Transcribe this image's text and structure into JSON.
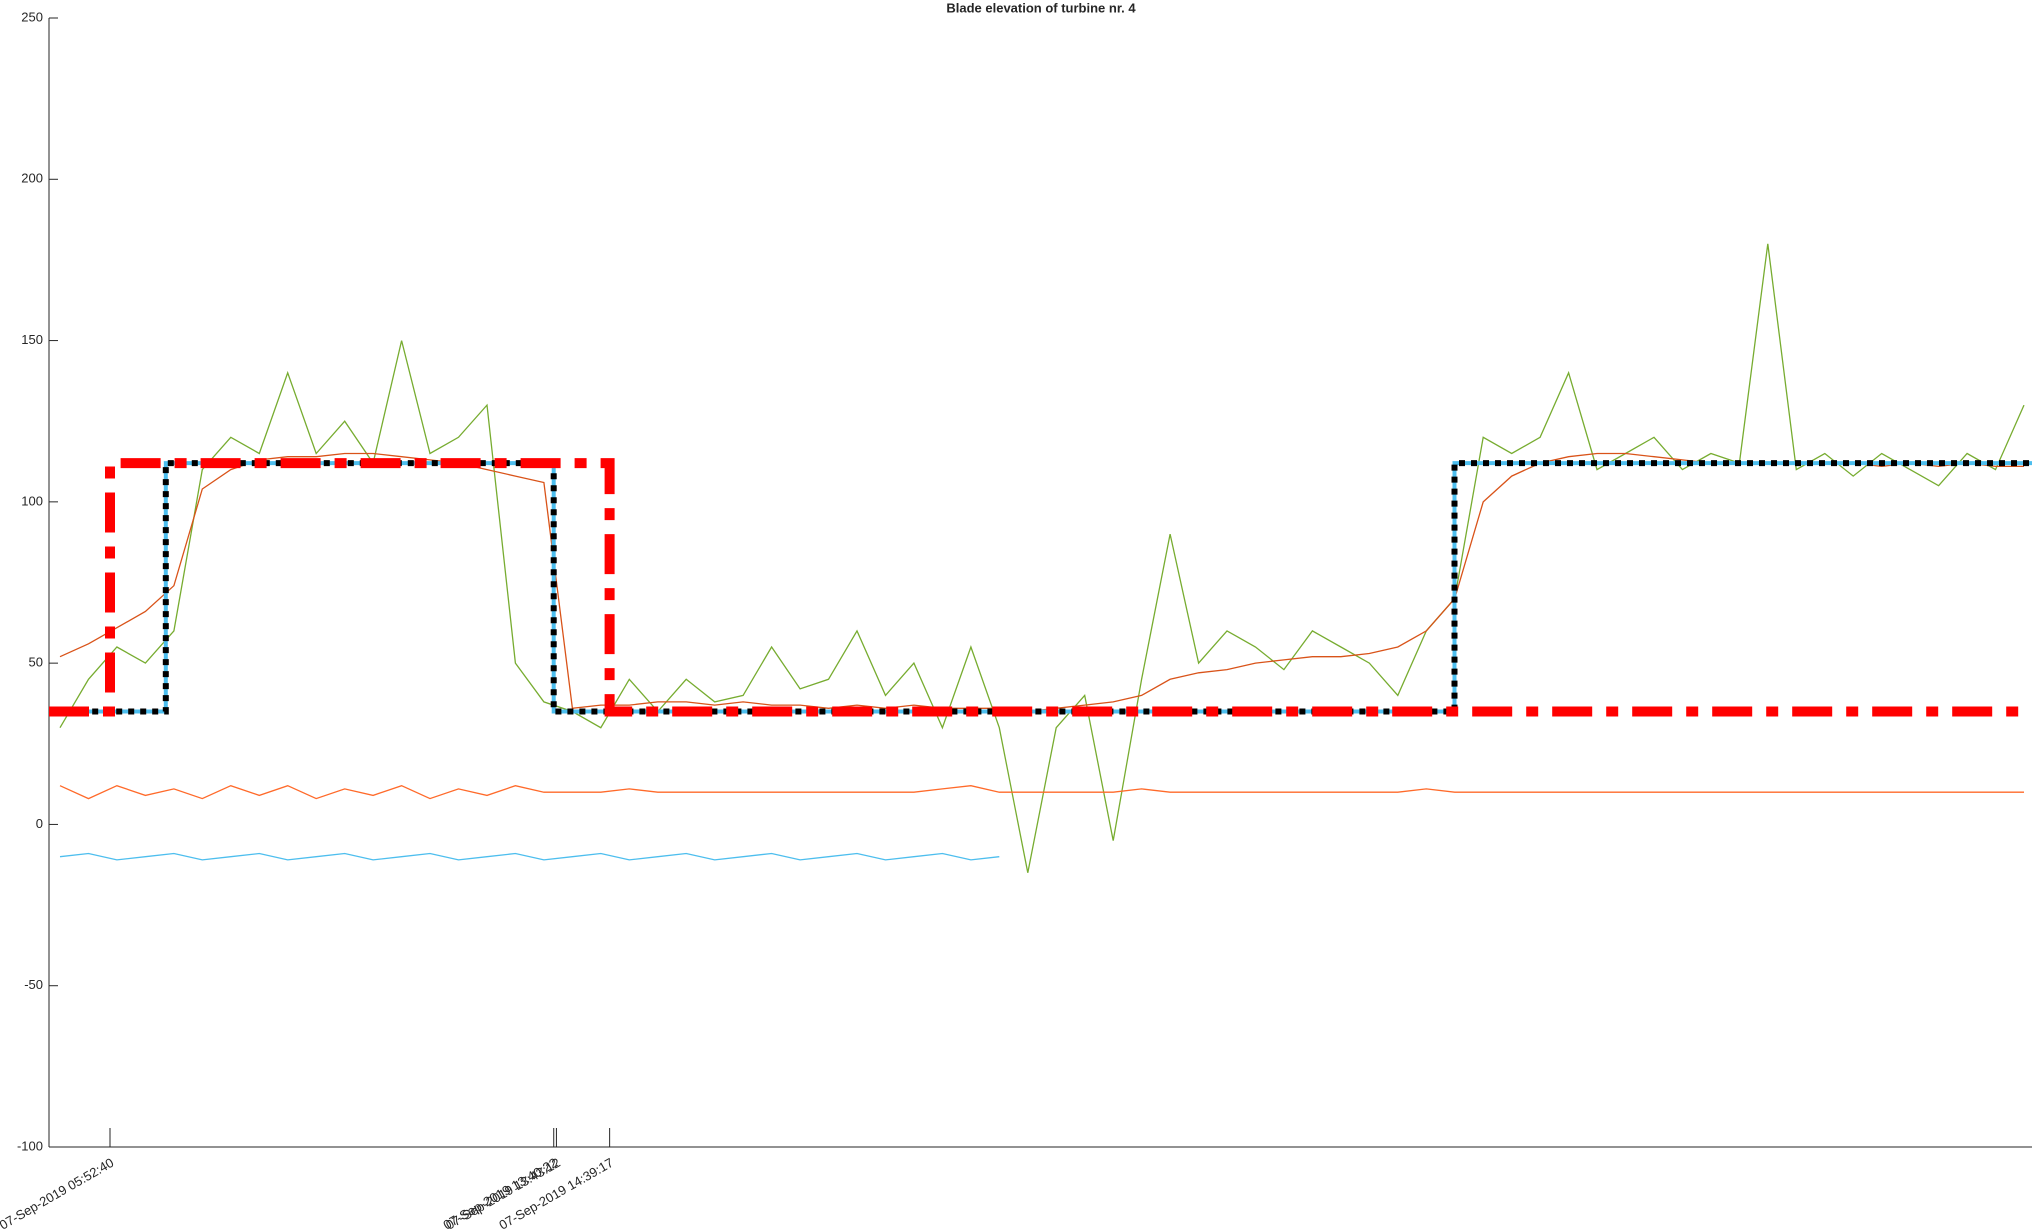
{
  "chart_data": {
    "type": "line",
    "title": "Blade elevation of turbine nr. 4",
    "xlim": [
      "07-Sep-2019 04:48:23",
      "08-Sep-2019 15:38:26"
    ],
    "xticks": [
      "07-Sep-2019 05:52:40",
      "07-Sep-2019 13:40:22",
      "07-Sep-2019 13:43:12",
      "07-Sep-2019 14:39:17"
    ],
    "ylim": [
      -100,
      250
    ],
    "yticks": [
      -100,
      -50,
      0,
      50,
      100,
      150,
      200,
      250
    ],
    "grid": false,
    "x": [
      "07-Sep-2019 05:00:00",
      "07-Sep-2019 05:30:00",
      "07-Sep-2019 06:00:00",
      "07-Sep-2019 06:30:00",
      "07-Sep-2019 07:00:00",
      "07-Sep-2019 07:30:00",
      "07-Sep-2019 08:00:00",
      "07-Sep-2019 08:30:00",
      "07-Sep-2019 09:00:00",
      "07-Sep-2019 09:30:00",
      "07-Sep-2019 10:00:00",
      "07-Sep-2019 10:30:00",
      "07-Sep-2019 11:00:00",
      "07-Sep-2019 11:30:00",
      "07-Sep-2019 12:00:00",
      "07-Sep-2019 12:30:00",
      "07-Sep-2019 13:00:00",
      "07-Sep-2019 13:30:00",
      "07-Sep-2019 14:00:00",
      "07-Sep-2019 14:30:00",
      "07-Sep-2019 15:00:00",
      "07-Sep-2019 15:30:00",
      "07-Sep-2019 16:00:00",
      "07-Sep-2019 16:30:00",
      "07-Sep-2019 17:00:00",
      "07-Sep-2019 17:30:00",
      "07-Sep-2019 18:00:00",
      "07-Sep-2019 18:30:00",
      "07-Sep-2019 19:00:00",
      "07-Sep-2019 19:30:00",
      "07-Sep-2019 20:00:00",
      "07-Sep-2019 20:30:00",
      "07-Sep-2019 21:00:00",
      "07-Sep-2019 21:30:00",
      "07-Sep-2019 22:00:00",
      "07-Sep-2019 22:30:00",
      "07-Sep-2019 23:00:00",
      "07-Sep-2019 23:30:00",
      "08-Sep-2019 00:00:00",
      "08-Sep-2019 00:30:00",
      "08-Sep-2019 01:00:00",
      "08-Sep-2019 01:30:00",
      "08-Sep-2019 02:00:00",
      "08-Sep-2019 02:30:00",
      "08-Sep-2019 03:00:00",
      "08-Sep-2019 03:30:00",
      "08-Sep-2019 04:00:00",
      "08-Sep-2019 04:30:00",
      "08-Sep-2019 05:00:00",
      "08-Sep-2019 05:30:00",
      "08-Sep-2019 06:00:00",
      "08-Sep-2019 06:30:00",
      "08-Sep-2019 07:00:00",
      "08-Sep-2019 07:30:00",
      "08-Sep-2019 08:00:00",
      "08-Sep-2019 08:30:00",
      "08-Sep-2019 09:00:00",
      "08-Sep-2019 09:30:00",
      "08-Sep-2019 10:00:00",
      "08-Sep-2019 10:30:00",
      "08-Sep-2019 11:00:00",
      "08-Sep-2019 11:30:00",
      "08-Sep-2019 12:00:00",
      "08-Sep-2019 12:30:00",
      "08-Sep-2019 13:00:00",
      "08-Sep-2019 13:30:00",
      "08-Sep-2019 14:00:00",
      "08-Sep-2019 14:30:00",
      "08-Sep-2019 15:00:00",
      "08-Sep-2019 15:30:00"
    ],
    "series": [
      {
        "color": "#77ac30",
        "style": "solid",
        "values": [
          30,
          45,
          55,
          50,
          60,
          110,
          120,
          115,
          140,
          115,
          125,
          112,
          150,
          115,
          120,
          130,
          50,
          38,
          35,
          30,
          45,
          35,
          45,
          38,
          40,
          55,
          42,
          45,
          60,
          40,
          50,
          30,
          55,
          30,
          -15,
          30,
          40,
          -5,
          45,
          90,
          50,
          60,
          55,
          48,
          60,
          55,
          50,
          40,
          60,
          70,
          120,
          115,
          120,
          140,
          110,
          115,
          120,
          110,
          115,
          112,
          180,
          110,
          115,
          108,
          115,
          110,
          105,
          115,
          110,
          130
        ]
      },
      {
        "color": "#d95319",
        "style": "solid",
        "values": [
          52,
          56,
          61,
          66,
          74,
          104,
          110,
          113,
          114,
          114,
          115,
          115,
          114,
          113,
          112,
          110,
          108,
          106,
          36,
          37,
          37,
          38,
          38,
          37,
          38,
          37,
          37,
          36,
          37,
          36,
          37,
          36,
          36,
          36,
          35,
          36,
          37,
          38,
          40,
          45,
          47,
          48,
          50,
          51,
          52,
          52,
          53,
          55,
          60,
          70,
          100,
          108,
          112,
          114,
          115,
          115,
          114,
          113,
          112,
          112,
          112,
          112,
          112,
          112,
          111,
          112,
          111,
          112,
          111,
          111
        ]
      },
      {
        "color": "#ff6a2a",
        "style": "solid",
        "values": [
          12,
          8,
          12,
          9,
          11,
          8,
          12,
          9,
          12,
          8,
          11,
          9,
          12,
          8,
          11,
          9,
          12,
          10,
          10,
          10,
          11,
          10,
          10,
          10,
          10,
          10,
          10,
          10,
          10,
          10,
          10,
          11,
          12,
          10,
          10,
          10,
          10,
          10,
          11,
          10,
          10,
          10,
          10,
          10,
          10,
          10,
          10,
          10,
          11,
          10,
          10,
          10,
          10,
          10,
          10,
          10,
          10,
          10,
          10,
          10,
          10,
          10,
          10,
          10,
          10,
          10,
          10,
          10,
          10,
          10
        ]
      },
      {
        "color": "#4dbeee",
        "style": "solid",
        "values": [
          -10,
          -9,
          -11,
          -10,
          -9,
          -11,
          -10,
          -9,
          -11,
          -10,
          -9,
          -11,
          -10,
          -9,
          -11,
          -10,
          -9,
          -11,
          -10,
          -9,
          -11,
          -10,
          -9,
          -11,
          -10,
          -9,
          -11,
          -10,
          -9,
          -11,
          -10,
          -9,
          -11,
          -10,
          null,
          null,
          null,
          null,
          null,
          null,
          null,
          null,
          null,
          null,
          null,
          null,
          null,
          null,
          null,
          null,
          null,
          null,
          null,
          null,
          null,
          null,
          null,
          null,
          null,
          null,
          null,
          null,
          null,
          null,
          null,
          null,
          null,
          null,
          null,
          null
        ]
      },
      {
        "color": "#4dbeee",
        "style": "step",
        "x": [
          "07-Sep-2019 04:48:23",
          "07-Sep-2019 06:51:29",
          "07-Sep-2019 06:51:29",
          "07-Sep-2019 13:40:22",
          "07-Sep-2019 13:40:22",
          "08-Sep-2019 05:29:45",
          "08-Sep-2019 05:29:45",
          "08-Sep-2019 15:38:26"
        ],
        "values": [
          35,
          35,
          112,
          112,
          35,
          35,
          112,
          112
        ]
      },
      {
        "color": "#000000",
        "style": "dotted",
        "x": [
          "07-Sep-2019 05:21:13",
          "07-Sep-2019 06:51:29",
          "07-Sep-2019 06:51:29",
          "07-Sep-2019 13:40:22",
          "07-Sep-2019 13:40:22",
          "08-Sep-2019 05:29:45",
          "08-Sep-2019 05:29:45",
          "08-Sep-2019 15:38:26"
        ],
        "values": [
          35,
          35,
          112,
          112,
          35,
          35,
          112,
          112
        ]
      },
      {
        "color": "#ff0000",
        "style": "dashdot",
        "x": [
          "07-Sep-2019 04:48:23",
          "07-Sep-2019 05:52:40",
          "07-Sep-2019 05:52:40",
          "07-Sep-2019 14:39:17",
          "07-Sep-2019 14:39:17",
          "08-Sep-2019 15:38:26"
        ],
        "values": [
          35,
          35,
          112,
          112,
          35,
          35
        ]
      }
    ]
  }
}
